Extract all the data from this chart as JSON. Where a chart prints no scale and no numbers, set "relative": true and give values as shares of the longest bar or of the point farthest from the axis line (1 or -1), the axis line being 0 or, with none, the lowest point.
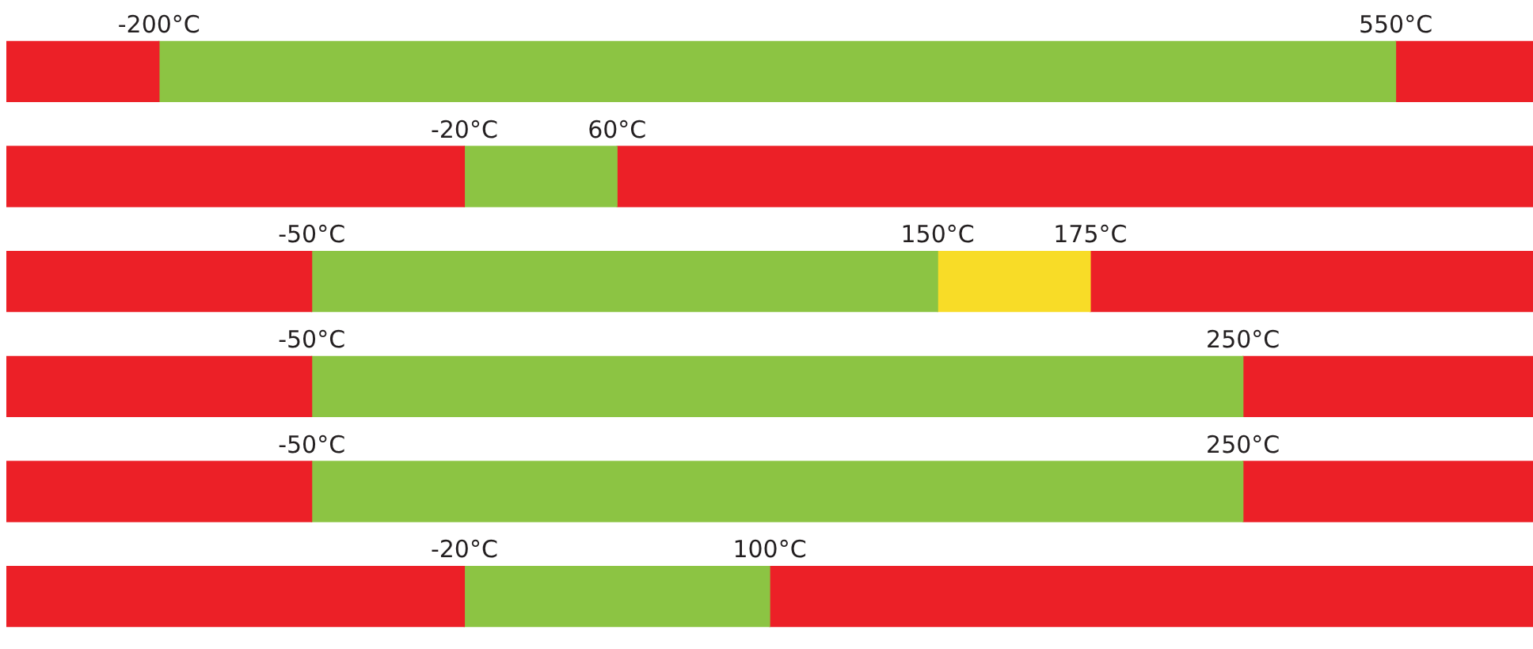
{
  "chart_data": {
    "type": "bar",
    "orientation": "horizontal",
    "stacked": true,
    "relative": true,
    "legend": false,
    "tick_labels": false,
    "categories": [
      null,
      null,
      null,
      null,
      null,
      null
    ],
    "series": [
      {
        "color": "#ec2027",
        "values": [
          0.1,
          0.3,
          0.2,
          0.2,
          0.2,
          0.3
        ]
      },
      {
        "color": "#8cc443",
        "values": [
          0.81,
          0.1,
          0.41,
          0.61,
          0.61,
          0.2
        ]
      },
      {
        "color": "#f8dc27",
        "values": [
          null,
          null,
          0.1,
          null,
          null,
          null
        ]
      },
      {
        "color": "#ec2027",
        "values": [
          0.09,
          0.6,
          0.29,
          0.19,
          0.19,
          0.5
        ]
      }
    ],
    "annotations": [
      "-200°C",
      "550°C",
      "-20°C",
      "60°C",
      "-50°C",
      "150°C",
      "175°C",
      "-50°C",
      "250°C",
      "-50°C",
      "250°C",
      "-20°C",
      "100°C"
    ]
  }
}
